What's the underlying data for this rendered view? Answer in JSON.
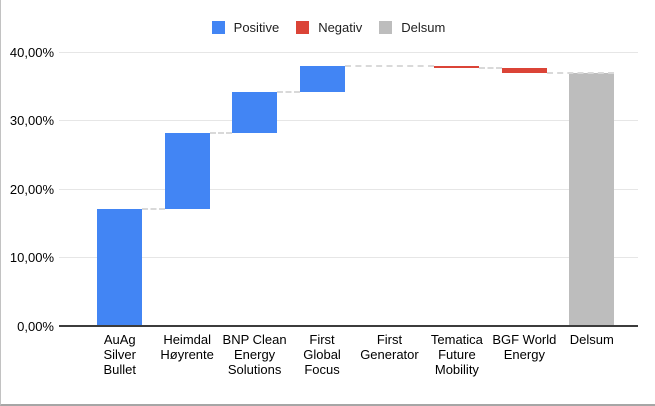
{
  "legend": {
    "items": [
      {
        "label": "Positive",
        "color": "#4285F4"
      },
      {
        "label": "Negativ",
        "color": "#DB4437"
      },
      {
        "label": "Delsum",
        "color": "#BDBDBD"
      }
    ]
  },
  "y_axis": {
    "ticks": [
      {
        "value": 40,
        "label": "40,00%"
      },
      {
        "value": 30,
        "label": "30,00%"
      },
      {
        "value": 20,
        "label": "20,00%"
      },
      {
        "value": 10,
        "label": "10,00%"
      },
      {
        "value": 0,
        "label": "0,00%"
      }
    ]
  },
  "chart_data": {
    "type": "bar",
    "subtype": "waterfall",
    "title": "",
    "xlabel": "",
    "ylabel": "",
    "ylim": [
      0,
      40
    ],
    "grid": true,
    "legend_position": "top",
    "value_format": "percent with comma decimal separator",
    "categories": [
      "AuAg Silver Bullet",
      "Heimdal Høyrente",
      "BNP Clean Energy Solutions",
      "First Global Focus",
      "First Generator",
      "Tematica Future Mobility",
      "BGF World Energy",
      "Delsum"
    ],
    "values": [
      17.0,
      11.2,
      5.9,
      3.9,
      0.0,
      -0.3,
      -0.7,
      37.0
    ],
    "kinds": [
      "positive",
      "positive",
      "positive",
      "positive",
      "positive",
      "negative",
      "negative",
      "total"
    ],
    "cumulative": [
      17.0,
      28.2,
      34.1,
      38.0,
      38.0,
      37.7,
      37.0,
      37.0
    ],
    "series_colors": {
      "positive": "#4285F4",
      "negative": "#DB4437",
      "total": "#BDBDBD"
    }
  },
  "style": {
    "gridline_color": "#e6e6e6",
    "baseline_color": "#3c3c3c",
    "connector_color": "#d9d9d9",
    "background": "#ffffff"
  }
}
